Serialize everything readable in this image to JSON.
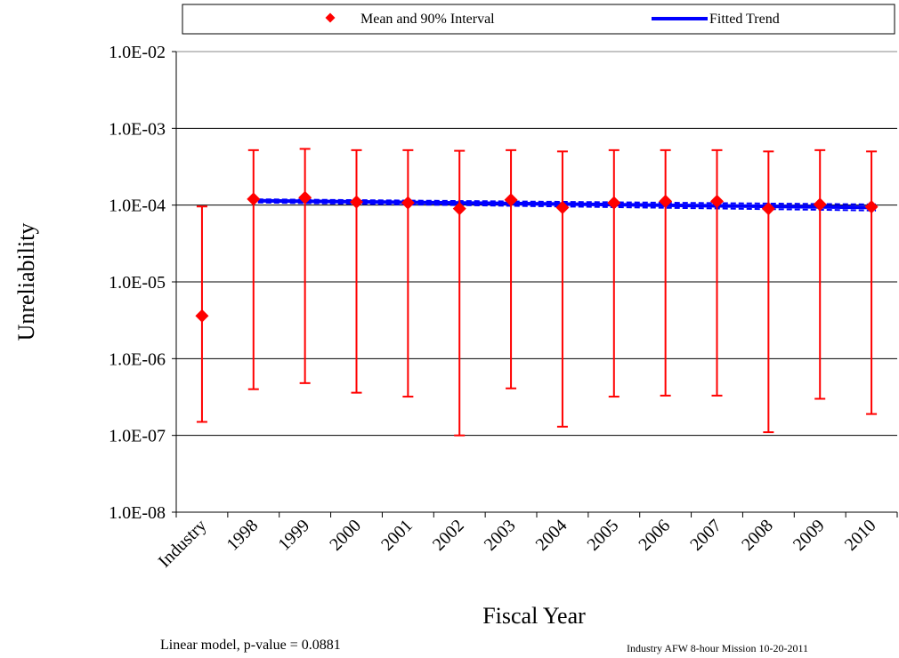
{
  "chart_data": {
    "type": "scatter",
    "title": "",
    "xlabel": "Fiscal Year",
    "ylabel": "Unreliability",
    "y_scale": "log",
    "ylim": [
      1e-08,
      0.01
    ],
    "y_ticks": [
      "1.0E-08",
      "1.0E-07",
      "1.0E-06",
      "1.0E-05",
      "1.0E-04",
      "1.0E-03",
      "1.0E-02"
    ],
    "categories": [
      "Industry",
      "1998",
      "1999",
      "2000",
      "2001",
      "2002",
      "2003",
      "2004",
      "2005",
      "2006",
      "2007",
      "2008",
      "2009",
      "2010"
    ],
    "grid": "horizontal",
    "legend_position": "top",
    "series": [
      {
        "name": "Mean and 90% Interval",
        "color": "#ff0000",
        "marker": "diamond",
        "mean": [
          3.6e-06,
          0.00012,
          0.000125,
          0.00011,
          0.000107,
          9e-05,
          0.000117,
          9.3e-05,
          0.000107,
          0.000112,
          0.000112,
          9e-05,
          0.000102,
          9.5e-05
        ],
        "lower": [
          1.5e-07,
          4e-07,
          4.8e-07,
          3.6e-07,
          3.2e-07,
          1e-07,
          4.1e-07,
          1.3e-07,
          3.2e-07,
          3.3e-07,
          3.3e-07,
          1.1e-07,
          3e-07,
          1.9e-07
        ],
        "upper": [
          9.6e-05,
          0.00052,
          0.00054,
          0.00052,
          0.00052,
          0.00051,
          0.00052,
          0.0005,
          0.00052,
          0.00052,
          0.00052,
          0.0005,
          0.00052,
          0.0005
        ]
      },
      {
        "name": "Fitted Trend",
        "color": "#0000ff",
        "x_start": "1998",
        "x_end": "2010",
        "fit_start": 0.000114,
        "fit_end": 9.3e-05,
        "band_low_start": 0.000108,
        "band_low_end": 8.5e-05,
        "band_high_start": 0.000119,
        "band_high_end": 0.000102
      }
    ]
  },
  "footer": {
    "model_note": "Linear model, p-value = 0.0881",
    "source_note": "Industry AFW 8-hour Mission 10-20-2011"
  }
}
